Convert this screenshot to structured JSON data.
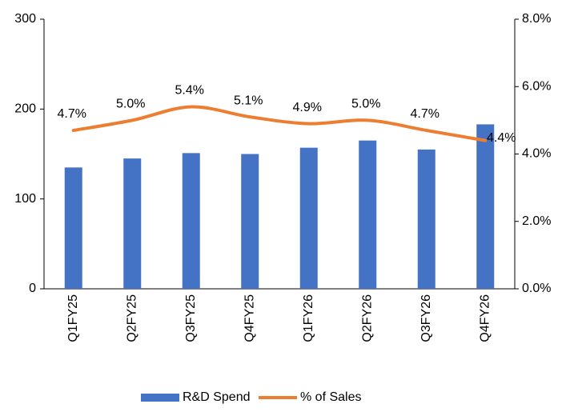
{
  "chart_data": {
    "type": "bar",
    "categories": [
      "Q1FY25",
      "Q2FY25",
      "Q3FY25",
      "Q4FY25",
      "Q1FY26",
      "Q2FY26",
      "Q3FY26",
      "Q4FY26"
    ],
    "series": [
      {
        "name": "R&D Spend",
        "type": "bar",
        "color": "#4472c4",
        "values": [
          135,
          145,
          151,
          150,
          157,
          165,
          155,
          183
        ]
      },
      {
        "name": "% of Sales",
        "type": "line",
        "axis": "y2",
        "color": "#ed7d31",
        "values": [
          4.7,
          5.0,
          5.4,
          5.1,
          4.9,
          5.0,
          4.7,
          4.4
        ],
        "value_labels": [
          "4.7%",
          "5.0%",
          "5.4%",
          "5.1%",
          "4.9%",
          "5.0%",
          "4.7%",
          "4.4%"
        ]
      }
    ],
    "ylim": [
      0,
      300
    ],
    "yticks": [
      0,
      100,
      200,
      300
    ],
    "y2lim": [
      0,
      8
    ],
    "y2ticks": [
      {
        "value": 0,
        "label": "0.0%"
      },
      {
        "value": 2,
        "label": "2.0%"
      },
      {
        "value": 4,
        "label": "4.0%"
      },
      {
        "value": 6,
        "label": "6.0%"
      },
      {
        "value": 8,
        "label": "8.0%"
      }
    ],
    "legend": "bottom"
  }
}
